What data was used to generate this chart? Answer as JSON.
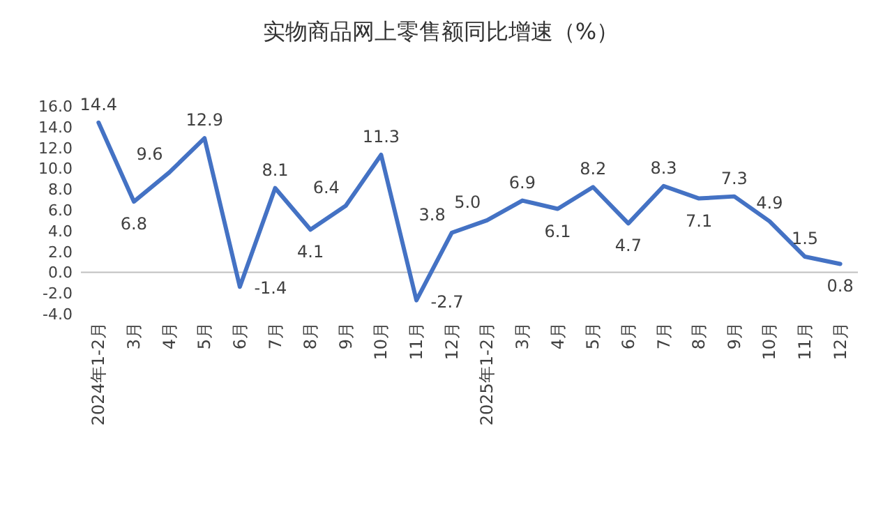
{
  "chart_data": {
    "type": "line",
    "title": "实物商品网上零售额同比增速（%）",
    "categories": [
      "2024年1-2月",
      "3月",
      "4月",
      "5月",
      "6月",
      "7月",
      "8月",
      "9月",
      "10月",
      "11月",
      "12月",
      "2025年1-2月",
      "3月",
      "4月",
      "5月",
      "6月",
      "7月",
      "8月",
      "9月",
      "10月",
      "11月",
      "12月"
    ],
    "series": [
      {
        "color": "#4472c4",
        "values": [
          14.4,
          6.8,
          9.6,
          12.9,
          -1.4,
          8.1,
          4.1,
          6.4,
          11.3,
          -2.7,
          3.8,
          5.0,
          6.9,
          6.1,
          8.2,
          4.7,
          8.3,
          7.1,
          7.3,
          4.9,
          1.5,
          0.8
        ],
        "value_labels": [
          "14.4",
          "6.8",
          "9.6",
          "12.9",
          "-1.4",
          "8.1",
          "4.1",
          "6.4",
          "11.3",
          "-2.7",
          "3.8",
          "5.0",
          "6.9",
          "6.1",
          "8.2",
          "4.7",
          "8.3",
          "7.1",
          "7.3",
          "4.9",
          "1.5",
          "0.8"
        ]
      }
    ],
    "ylim": [
      -4,
      16
    ],
    "yticks": [
      {
        "value": -4,
        "label": "-4.0"
      },
      {
        "value": -2,
        "label": "-2.0"
      },
      {
        "value": 0,
        "label": "0.0"
      },
      {
        "value": 2,
        "label": "2.0"
      },
      {
        "value": 4,
        "label": "4.0"
      },
      {
        "value": 6,
        "label": "6.0"
      },
      {
        "value": 8,
        "label": "8.0"
      },
      {
        "value": 10,
        "label": "10.0"
      },
      {
        "value": 12,
        "label": "12.0"
      },
      {
        "value": 14,
        "label": "14.0"
      },
      {
        "value": 16,
        "label": "16.0"
      }
    ],
    "marker": "none",
    "line_style": "solid"
  }
}
